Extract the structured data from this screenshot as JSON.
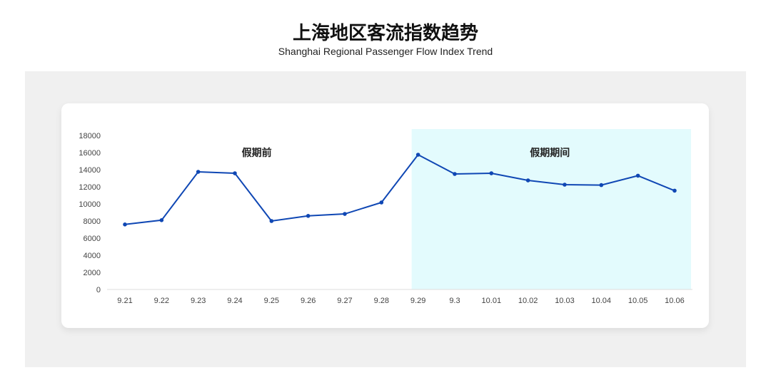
{
  "header": {
    "title": "上海地区客流指数趋势",
    "subtitle": "Shanghai Regional Passenger Flow Index Trend"
  },
  "chart_data": {
    "type": "line",
    "title": "上海地区客流指数趋势",
    "subtitle": "Shanghai Regional Passenger Flow Index Trend",
    "xlabel": "",
    "ylabel": "",
    "categories": [
      "9.21",
      "9.22",
      "9.23",
      "9.24",
      "9.25",
      "9.26",
      "9.27",
      "9.28",
      "9.29",
      "9.3",
      "10.01",
      "10.02",
      "10.03",
      "10.04",
      "10.05",
      "10.06"
    ],
    "values": [
      7600,
      8100,
      13750,
      13580,
      8000,
      8600,
      8830,
      10170,
      15750,
      13500,
      13580,
      12750,
      12250,
      12200,
      13300,
      11550
    ],
    "ylim": [
      0,
      18000
    ],
    "yticks": [
      0,
      2000,
      4000,
      6000,
      8000,
      10000,
      12000,
      14000,
      16000,
      18000
    ],
    "grid": false,
    "line_color": "#0f47b4",
    "annotations": [
      {
        "text": "假期前",
        "range": [
          "9.21",
          "9.28"
        ]
      },
      {
        "text": "假期期间",
        "range": [
          "9.29",
          "10.06"
        ],
        "shade_color": "#e3fbfd"
      }
    ]
  }
}
